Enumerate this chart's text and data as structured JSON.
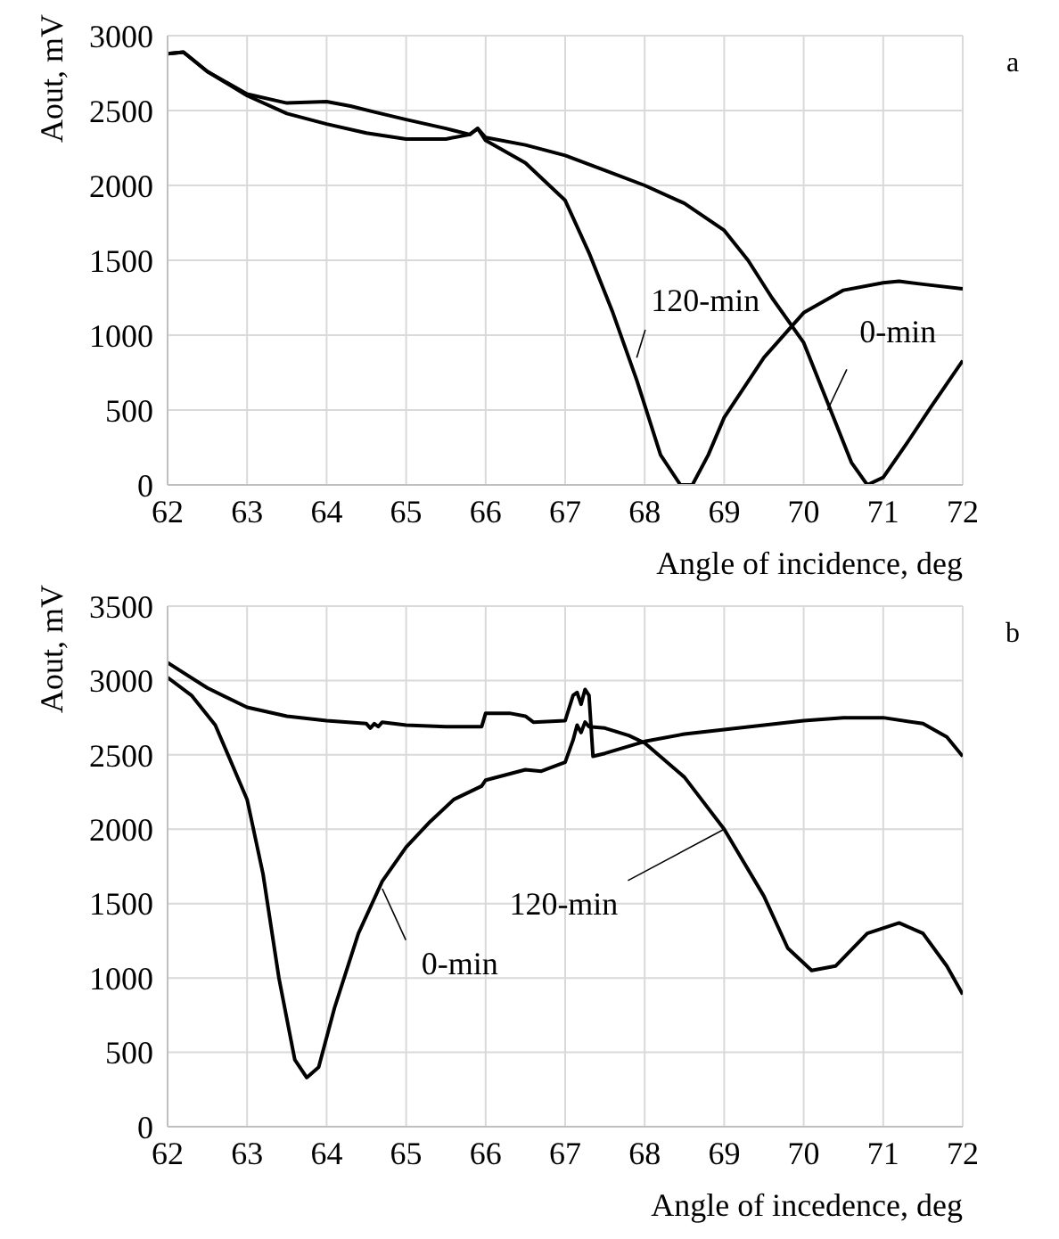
{
  "chart_data": [
    {
      "type": "line",
      "xlabel": "Angle of incidence, deg",
      "ylabel": "Aout, mV",
      "xlim": [
        62,
        72
      ],
      "xticks": [
        62,
        63,
        64,
        65,
        66,
        67,
        68,
        69,
        70,
        71,
        72
      ],
      "ylim": [
        0,
        3000
      ],
      "yticks": [
        0,
        500,
        1000,
        1500,
        2000,
        2500,
        3000
      ],
      "grid": true,
      "series": [
        {
          "color": "#000000",
          "x": [
            62,
            62.2,
            62.5,
            63,
            63.5,
            64,
            64.3,
            64.6,
            65,
            65.5,
            65.8,
            65.9,
            66,
            66.5,
            67,
            67.5,
            68,
            68.5,
            69,
            69.3,
            69.6,
            70,
            70.3,
            70.6,
            70.8,
            71,
            71.3,
            71.6,
            72
          ],
          "values": [
            2880,
            2890,
            2760,
            2610,
            2550,
            2560,
            2530,
            2490,
            2440,
            2380,
            2340,
            2380,
            2320,
            2270,
            2200,
            2100,
            2000,
            1880,
            1700,
            1500,
            1250,
            950,
            550,
            150,
            0,
            50,
            280,
            520,
            830
          ]
        },
        {
          "color": "#000000",
          "x": [
            62,
            62.2,
            62.5,
            63,
            63.5,
            64,
            64.5,
            65,
            65.5,
            65.8,
            65.9,
            66,
            66.5,
            67,
            67.3,
            67.6,
            67.9,
            68.2,
            68.45,
            68.6,
            68.8,
            69,
            69.5,
            70,
            70.5,
            71,
            71.2,
            71.5,
            72
          ],
          "values": [
            2880,
            2890,
            2760,
            2600,
            2480,
            2410,
            2350,
            2310,
            2310,
            2340,
            2380,
            2300,
            2150,
            1900,
            1550,
            1150,
            700,
            200,
            0,
            0,
            200,
            450,
            850,
            1150,
            1300,
            1350,
            1360,
            1340,
            1310
          ]
        }
      ],
      "annotations": [
        "a",
        {
          "text": "120-min",
          "x": 67.9,
          "y": 850
        },
        {
          "text": "0-min",
          "x": 70.3,
          "y": 500
        }
      ]
    },
    {
      "type": "line",
      "xlabel": "Angle of incedence, deg",
      "ylabel": "Aout, mV",
      "xlim": [
        62,
        72
      ],
      "xticks": [
        62,
        63,
        64,
        65,
        66,
        67,
        68,
        69,
        70,
        71,
        72
      ],
      "ylim": [
        0,
        3500
      ],
      "yticks": [
        0,
        500,
        1000,
        1500,
        2000,
        2500,
        3000,
        3500
      ],
      "grid": true,
      "series": [
        {
          "color": "#000000",
          "x": [
            62,
            62.5,
            63,
            63.5,
            64,
            64.5,
            64.55,
            64.6,
            64.65,
            64.7,
            65,
            65.5,
            65.95,
            66,
            66.3,
            66.5,
            66.6,
            67,
            67.1,
            67.15,
            67.2,
            67.25,
            67.3,
            67.35,
            67.5,
            68,
            68.5,
            69,
            69.5,
            70,
            70.5,
            71,
            71.5,
            71.8,
            72
          ],
          "values": [
            3120,
            2950,
            2820,
            2760,
            2730,
            2710,
            2680,
            2710,
            2690,
            2720,
            2700,
            2690,
            2690,
            2780,
            2780,
            2760,
            2720,
            2730,
            2900,
            2920,
            2840,
            2940,
            2900,
            2490,
            2510,
            2590,
            2640,
            2670,
            2700,
            2730,
            2750,
            2750,
            2710,
            2620,
            2490
          ]
        },
        {
          "color": "#000000",
          "x": [
            62,
            62.3,
            62.6,
            63,
            63.2,
            63.4,
            63.6,
            63.75,
            63.9,
            64.1,
            64.4,
            64.7,
            65,
            65.3,
            65.6,
            65.95,
            66,
            66.5,
            66.7,
            67,
            67.1,
            67.15,
            67.2,
            67.25,
            67.3,
            67.5,
            67.8,
            68,
            68.5,
            69,
            69.5,
            69.8,
            70.1,
            70.4,
            70.8,
            71.2,
            71.5,
            71.8,
            72
          ],
          "values": [
            3020,
            2900,
            2700,
            2200,
            1700,
            1000,
            450,
            330,
            400,
            800,
            1300,
            1650,
            1880,
            2050,
            2200,
            2290,
            2330,
            2400,
            2390,
            2450,
            2600,
            2700,
            2650,
            2720,
            2690,
            2680,
            2630,
            2580,
            2350,
            2000,
            1550,
            1200,
            1050,
            1080,
            1300,
            1370,
            1300,
            1080,
            890
          ]
        }
      ],
      "annotations": [
        "b",
        {
          "text": "0-min",
          "x": 64.7,
          "y": 1600
        },
        {
          "text": "120-min",
          "x": 69,
          "y": 2000
        }
      ]
    }
  ]
}
